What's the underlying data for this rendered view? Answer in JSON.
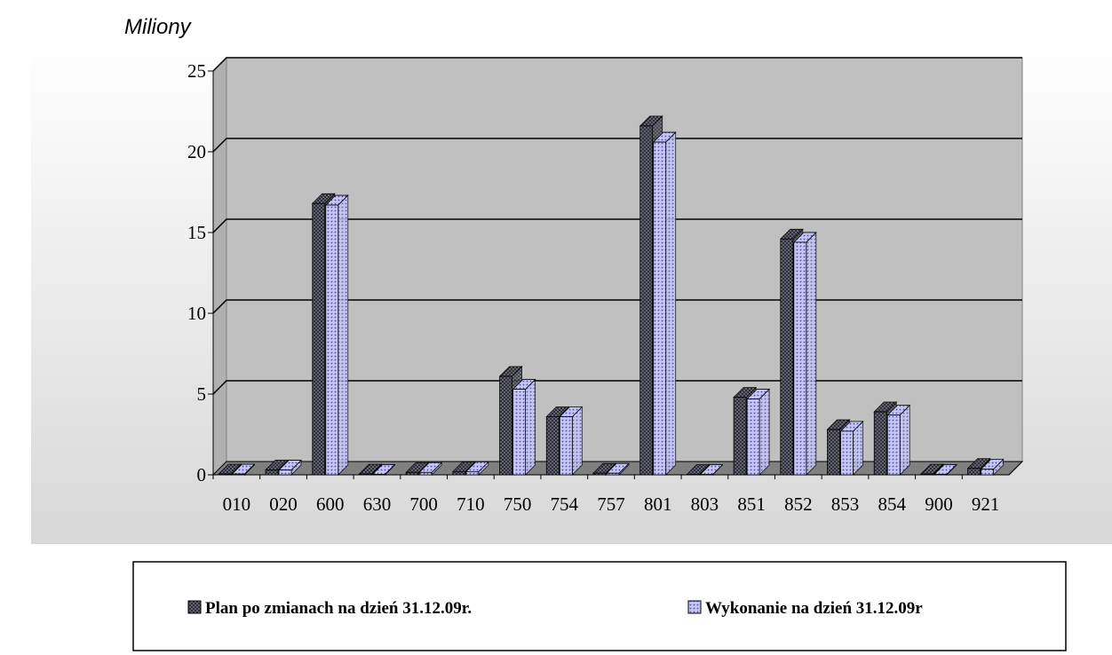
{
  "chart_data": {
    "type": "bar3d",
    "y_axis_unit": "Miliony",
    "categories": [
      "010",
      "020",
      "600",
      "630",
      "700",
      "710",
      "750",
      "754",
      "757",
      "801",
      "803",
      "851",
      "852",
      "853",
      "854",
      "900",
      "921"
    ],
    "series": [
      {
        "name": "Plan po zmianach na dzień 31.12.09r.",
        "color": "#707088",
        "values": [
          0.05,
          0.3,
          16.8,
          0.05,
          0.15,
          0.2,
          6.1,
          3.6,
          0.1,
          21.6,
          0.02,
          4.8,
          14.6,
          2.8,
          3.9,
          0.05,
          0.4
        ]
      },
      {
        "name": "Wykonanie na dzień 31.12.09r",
        "color": "#c4c4ff",
        "values": [
          0.05,
          0.3,
          16.7,
          0.03,
          0.15,
          0.2,
          5.3,
          3.6,
          0.1,
          20.6,
          0.02,
          4.7,
          14.4,
          2.7,
          3.7,
          0.03,
          0.35
        ]
      }
    ],
    "ylim": [
      0,
      25
    ],
    "yticks": [
      0,
      5,
      10,
      15,
      20,
      25
    ],
    "grid": true
  }
}
